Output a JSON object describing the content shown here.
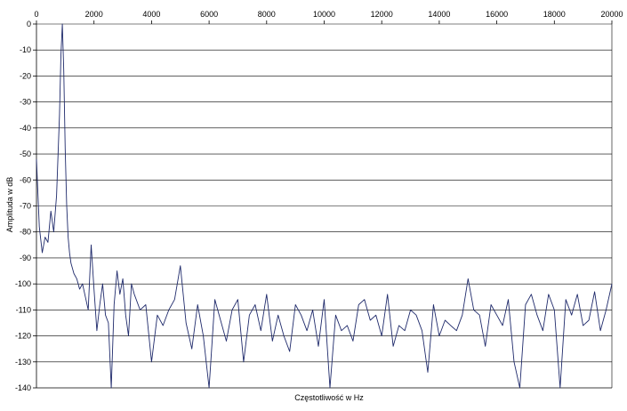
{
  "chart_data": {
    "type": "line",
    "title": "",
    "xlabel": "Częstotliwość w Hz",
    "ylabel": "Amplituda w dB",
    "xlim": [
      0,
      20000
    ],
    "ylim": [
      -140,
      0
    ],
    "x_ticks": [
      "0",
      "2000",
      "4000",
      "6000",
      "8000",
      "10000",
      "12000",
      "14000",
      "16000",
      "18000",
      "20000"
    ],
    "y_ticks": [
      "0",
      "-10",
      "-20",
      "-30",
      "-40",
      "-50",
      "-60",
      "-70",
      "-80",
      "-90",
      "-100",
      "-110",
      "-120",
      "-130",
      "-140"
    ],
    "x_axis_position": "top",
    "grid": "horizontal",
    "legend": "none",
    "line_color": "#1f2a6b",
    "series": [
      {
        "x": [
          0,
          100,
          200,
          300,
          400,
          500,
          600,
          700,
          800,
          850,
          900,
          950,
          1000,
          1050,
          1100,
          1150,
          1200,
          1300,
          1400,
          1500,
          1600,
          1700,
          1800,
          1900,
          2000,
          2100,
          2200,
          2300,
          2400,
          2500,
          2600,
          2700,
          2800,
          2900,
          3000,
          3100,
          3200,
          3300,
          3400,
          3600,
          3800,
          4000,
          4200,
          4400,
          4600,
          4800,
          5000,
          5200,
          5400,
          5600,
          5800,
          6000,
          6200,
          6400,
          6600,
          6800,
          7000,
          7200,
          7400,
          7600,
          7800,
          8000,
          8200,
          8400,
          8600,
          8800,
          9000,
          9200,
          9400,
          9600,
          9800,
          10000,
          10200,
          10400,
          10600,
          10800,
          11000,
          11200,
          11400,
          11600,
          11800,
          12000,
          12200,
          12400,
          12600,
          12800,
          13000,
          13200,
          13400,
          13600,
          13800,
          14000,
          14200,
          14400,
          14600,
          14800,
          15000,
          15200,
          15400,
          15600,
          15800,
          16000,
          16200,
          16400,
          16600,
          16800,
          17000,
          17200,
          17400,
          17600,
          17800,
          18000,
          18200,
          18400,
          18600,
          18800,
          19000,
          19200,
          19400,
          19600,
          19800,
          20000
        ],
        "y": [
          -52,
          -78,
          -88,
          -82,
          -84,
          -72,
          -80,
          -66,
          -35,
          -12,
          0,
          -18,
          -48,
          -70,
          -82,
          -88,
          -92,
          -96,
          -98,
          -102,
          -100,
          -105,
          -110,
          -85,
          -102,
          -118,
          -108,
          -100,
          -112,
          -115,
          -140,
          -108,
          -95,
          -104,
          -98,
          -112,
          -120,
          -100,
          -104,
          -110,
          -108,
          -130,
          -112,
          -116,
          -110,
          -106,
          -93,
          -115,
          -125,
          -108,
          -120,
          -140,
          -106,
          -114,
          -122,
          -110,
          -106,
          -130,
          -112,
          -108,
          -118,
          -104,
          -122,
          -112,
          -120,
          -126,
          -108,
          -112,
          -118,
          -110,
          -124,
          -106,
          -140,
          -112,
          -118,
          -116,
          -122,
          -108,
          -106,
          -114,
          -112,
          -120,
          -104,
          -124,
          -116,
          -118,
          -110,
          -112,
          -118,
          -134,
          -108,
          -120,
          -114,
          -116,
          -118,
          -112,
          -98,
          -110,
          -112,
          -124,
          -108,
          -112,
          -116,
          -106,
          -130,
          -140,
          -108,
          -104,
          -112,
          -118,
          -104,
          -110,
          -140,
          -106,
          -112,
          -104,
          -116,
          -114,
          -103,
          -118,
          -110,
          -100
        ]
      }
    ]
  }
}
